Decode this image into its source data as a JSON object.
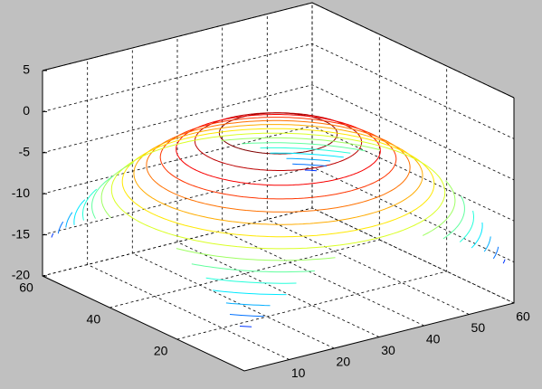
{
  "chart_data": {
    "type": "contour3",
    "colormap": "jet",
    "grid": true,
    "box": true,
    "xlim": [
      0,
      60
    ],
    "ylim": [
      0,
      60
    ],
    "zlim": [
      -20,
      5
    ],
    "xticks": [
      10,
      20,
      30,
      40,
      50,
      60
    ],
    "yticks": [
      20,
      40,
      60
    ],
    "zticks": [
      -20,
      -15,
      -10,
      -5,
      0,
      5
    ],
    "center": [
      30,
      30
    ],
    "contours": [
      {
        "level": -1,
        "radius": 10.5
      },
      {
        "level": -2,
        "radius": 14.85
      },
      {
        "level": -3,
        "radius": 18.19
      },
      {
        "level": -4,
        "radius": 21
      },
      {
        "level": -5,
        "radius": 23.48
      },
      {
        "level": -6,
        "radius": 25.72
      },
      {
        "level": -7,
        "radius": 27.78
      },
      {
        "level": -8,
        "radius": 29.7
      },
      {
        "level": -9,
        "radius": 31.5
      },
      {
        "level": -10,
        "radius": 33.2
      },
      {
        "level": -11,
        "radius": 34.82
      },
      {
        "level": -12,
        "radius": 36.37
      },
      {
        "level": -13,
        "radius": 37.86
      },
      {
        "level": -14,
        "radius": 39.29
      },
      {
        "level": -15,
        "radius": 40.67
      },
      {
        "level": -16,
        "radius": 42
      },
      {
        "level": -17,
        "radius": 43.29
      },
      {
        "level": -18,
        "radius": 44.55
      }
    ]
  }
}
